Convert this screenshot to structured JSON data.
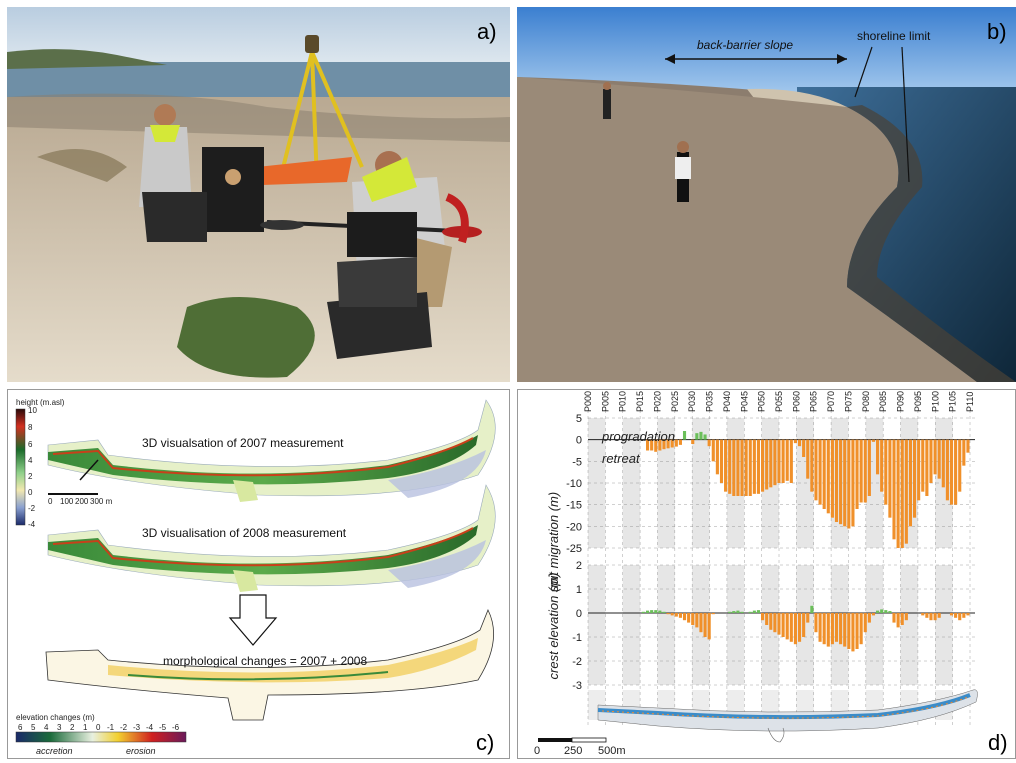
{
  "panels": {
    "a": {
      "letter": "a)"
    },
    "b": {
      "letter": "b)",
      "annotations": {
        "back_barrier": "back-barrier slope",
        "shoreline": "shoreline limit"
      }
    },
    "c": {
      "letter": "c)",
      "height_scale": {
        "title": "height (m.asl)",
        "ticks": [
          "10",
          "8",
          "6",
          "4",
          "2",
          "0",
          "-2",
          "-4"
        ]
      },
      "map_scale": {
        "ticks": [
          "0",
          "100",
          "200",
          "300 m"
        ]
      },
      "titles": {
        "v2007": "3D visualsation of 2007 measurement",
        "v2008": "3D visualisation of 2008 measurement",
        "changes": "morphological changes = 2007 + 2008"
      },
      "elev_legend": {
        "title": "elevation changes (m)",
        "ticks": [
          "6",
          "5",
          "4",
          "3",
          "2",
          "1",
          "0",
          "-1",
          "-2",
          "-3",
          "-4",
          "-5",
          "-6"
        ],
        "accretion": "accretion",
        "erosion": "erosion"
      }
    },
    "d": {
      "letter": "d)",
      "scale_bar": {
        "ticks": [
          "0",
          "250",
          "500m"
        ]
      },
      "labels": {
        "progradation": "progradation",
        "retreat": "retreat"
      }
    }
  },
  "chart_data": [
    {
      "type": "bar",
      "ylabel": "spit migration (m)",
      "ylim": [
        -25,
        5
      ],
      "yticks": [
        5,
        0,
        -5,
        -10,
        -15,
        -20,
        -25
      ],
      "profile_labels": [
        "P000",
        "P005",
        "P010",
        "P015",
        "P020",
        "P025",
        "P030",
        "P035",
        "P040",
        "P045",
        "P050",
        "P055",
        "P060",
        "P065",
        "P070",
        "P075",
        "P080",
        "P085",
        "P090",
        "P095",
        "P100",
        "P105",
        "P110"
      ],
      "bar_profiles_start": 18,
      "bar_profiles_end": 110,
      "values": [
        0,
        0,
        0,
        0,
        0,
        0,
        0,
        0,
        0,
        0,
        0,
        0,
        0,
        0,
        -2.5,
        -2.5,
        -2.8,
        -2.5,
        -2.2,
        -2.0,
        -1.8,
        -1.6,
        -1.2,
        2.0,
        0,
        -1.0,
        1.5,
        1.8,
        1.2,
        -1.5,
        -5,
        -8,
        -10,
        -12,
        -12.5,
        -13,
        -13,
        -13,
        -13,
        -13,
        -12.5,
        -12.5,
        -12,
        -11.5,
        -11,
        -10.5,
        -10,
        -10,
        -9.5,
        -10,
        -0.8,
        -1.5,
        -4,
        -9,
        -12,
        -14,
        -15,
        -16,
        -17,
        -18,
        -19,
        -19.5,
        -20,
        -20.5,
        -20,
        -16,
        -14.5,
        -14.5,
        -13,
        -0.5,
        -8,
        -12,
        -15,
        -18,
        -23,
        -25,
        -25,
        -24,
        -20,
        -18,
        -14,
        -12,
        -13,
        -10,
        -8,
        -9,
        -11,
        -14,
        -15,
        -15,
        -12,
        -6,
        -3
      ],
      "shaded_profiles": [
        "P000",
        "P010",
        "P020",
        "P030",
        "P040",
        "P050",
        "P060",
        "P070",
        "P080",
        "P090",
        "P100"
      ]
    },
    {
      "type": "bar",
      "ylabel": "crest elevation (m)",
      "ylim": [
        -3,
        2
      ],
      "yticks": [
        2,
        1,
        0,
        -1,
        -2,
        -3
      ],
      "values": [
        0,
        0,
        0,
        0,
        0,
        0,
        0,
        0,
        0,
        0,
        0,
        0,
        0,
        0.05,
        0.1,
        0.12,
        0.12,
        0.1,
        0.05,
        -0.05,
        -0.1,
        -0.15,
        -0.2,
        -0.3,
        -0.4,
        -0.5,
        -0.6,
        -0.8,
        -1.0,
        -1.1,
        -0.05,
        0,
        0,
        0,
        0.05,
        0.08,
        0.1,
        0.05,
        0,
        0.05,
        0.1,
        0.12,
        -0.3,
        -0.5,
        -0.7,
        -0.8,
        -0.9,
        -1.0,
        -1.1,
        -1.2,
        -1.3,
        -1.2,
        -1.0,
        -0.4,
        0.3,
        -0.8,
        -1.2,
        -1.3,
        -1.4,
        -1.3,
        -1.2,
        -1.3,
        -1.4,
        -1.5,
        -1.6,
        -1.5,
        -1.3,
        -0.8,
        -0.4,
        -0.1,
        0.1,
        0.15,
        0.12,
        0.08,
        -0.4,
        -0.6,
        -0.5,
        -0.3,
        0,
        0,
        0,
        -0.1,
        -0.2,
        -0.3,
        -0.3,
        -0.2,
        0,
        0,
        -0.1,
        -0.2,
        -0.3,
        -0.2,
        -0.1
      ]
    }
  ],
  "colors": {
    "erosion_bar": "#f0902a",
    "accretion_bar": "#6bbf5a",
    "shade": "#e6e6e6"
  }
}
